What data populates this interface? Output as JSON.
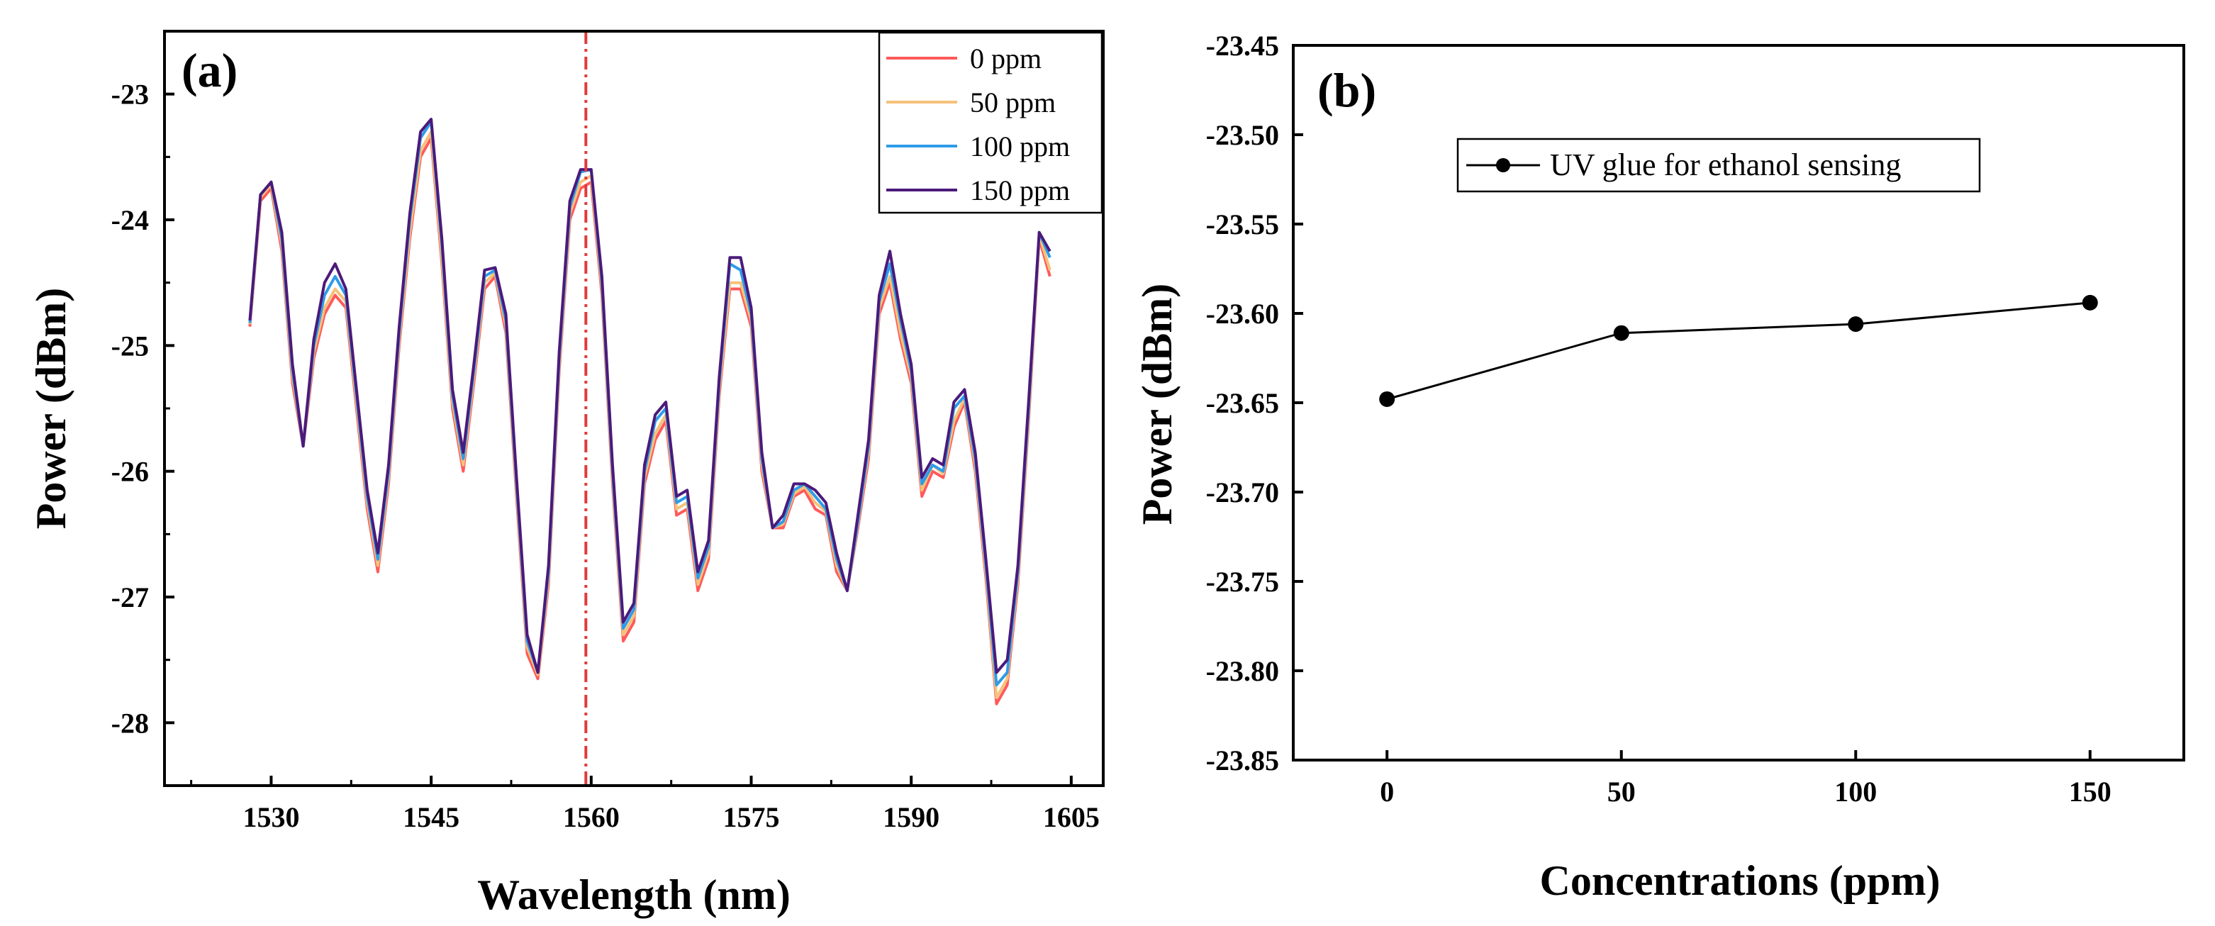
{
  "chart_data": [
    {
      "panel_label": "(a)",
      "type": "line",
      "xlabel": "Wavelength (nm)",
      "ylabel": "Power (dBm)",
      "xlim": [
        1520,
        1608
      ],
      "ylim": [
        -28.5,
        -22.5
      ],
      "xticks": [
        1530,
        1545,
        1560,
        1575,
        1590,
        1605
      ],
      "yticks": [
        -28,
        -27,
        -26,
        -25,
        -24,
        -23
      ],
      "reference_line": {
        "x": 1559.5,
        "style": "dash-dot",
        "color": "#e23a3a"
      },
      "legend_position": "top-right",
      "series": [
        {
          "name": "0 ppm",
          "color": "#ff5a5a",
          "x": [
            1528,
            1529,
            1530,
            1531,
            1532,
            1533,
            1534,
            1535,
            1536,
            1537,
            1538,
            1539,
            1540,
            1541,
            1542,
            1543,
            1544,
            1545,
            1546,
            1547,
            1548,
            1549,
            1550,
            1551,
            1552,
            1553,
            1554,
            1555,
            1556,
            1557,
            1558,
            1559,
            1560,
            1561,
            1562,
            1563,
            1564,
            1565,
            1566,
            1567,
            1568,
            1569,
            1570,
            1571,
            1572,
            1573,
            1574,
            1575,
            1576,
            1577,
            1578,
            1579,
            1580,
            1581,
            1582,
            1583,
            1584,
            1585,
            1586,
            1587,
            1588,
            1589,
            1590,
            1591,
            1592,
            1593,
            1594,
            1595,
            1596,
            1597,
            1598,
            1599,
            1600,
            1601,
            1602,
            1603
          ],
          "y": [
            -24.85,
            -23.85,
            -23.75,
            -24.25,
            -25.3,
            -25.8,
            -25.1,
            -24.75,
            -24.6,
            -24.7,
            -25.5,
            -26.3,
            -26.8,
            -26.1,
            -25.0,
            -24.15,
            -23.5,
            -23.35,
            -24.35,
            -25.5,
            -26.0,
            -25.3,
            -24.55,
            -24.45,
            -24.9,
            -26.2,
            -27.45,
            -27.65,
            -26.9,
            -25.2,
            -24.0,
            -23.75,
            -23.7,
            -24.6,
            -26.1,
            -27.35,
            -27.2,
            -26.1,
            -25.75,
            -25.6,
            -26.35,
            -26.3,
            -26.95,
            -26.7,
            -25.4,
            -24.55,
            -24.55,
            -24.85,
            -26.0,
            -26.45,
            -26.45,
            -26.2,
            -26.15,
            -26.3,
            -26.35,
            -26.8,
            -26.95,
            -26.45,
            -25.9,
            -24.75,
            -24.5,
            -24.95,
            -25.3,
            -26.2,
            -26.0,
            -26.05,
            -25.65,
            -25.45,
            -26.0,
            -26.85,
            -27.85,
            -27.7,
            -26.9,
            -25.6,
            -24.15,
            -24.45
          ]
        },
        {
          "name": "50 ppm",
          "color": "#f5c27a",
          "x": [
            1528,
            1529,
            1530,
            1531,
            1532,
            1533,
            1534,
            1535,
            1536,
            1537,
            1538,
            1539,
            1540,
            1541,
            1542,
            1543,
            1544,
            1545,
            1546,
            1547,
            1548,
            1549,
            1550,
            1551,
            1552,
            1553,
            1554,
            1555,
            1556,
            1557,
            1558,
            1559,
            1560,
            1561,
            1562,
            1563,
            1564,
            1565,
            1566,
            1567,
            1568,
            1569,
            1570,
            1571,
            1572,
            1573,
            1574,
            1575,
            1576,
            1577,
            1578,
            1579,
            1580,
            1581,
            1582,
            1583,
            1584,
            1585,
            1586,
            1587,
            1588,
            1589,
            1590,
            1591,
            1592,
            1593,
            1594,
            1595,
            1596,
            1597,
            1598,
            1599,
            1600,
            1601,
            1602,
            1603
          ],
          "y": [
            -24.83,
            -23.82,
            -23.72,
            -24.2,
            -25.25,
            -25.78,
            -25.05,
            -24.7,
            -24.55,
            -24.65,
            -25.45,
            -26.25,
            -26.75,
            -26.05,
            -24.95,
            -24.1,
            -23.45,
            -23.3,
            -24.3,
            -25.45,
            -25.95,
            -25.25,
            -24.5,
            -24.42,
            -24.85,
            -26.15,
            -27.4,
            -27.62,
            -26.85,
            -25.15,
            -23.95,
            -23.7,
            -23.65,
            -24.55,
            -26.05,
            -27.3,
            -27.15,
            -26.05,
            -25.7,
            -25.55,
            -26.3,
            -26.25,
            -26.9,
            -26.65,
            -25.35,
            -24.5,
            -24.5,
            -24.8,
            -25.95,
            -26.45,
            -26.42,
            -26.18,
            -26.12,
            -26.25,
            -26.32,
            -26.75,
            -26.95,
            -26.42,
            -25.85,
            -24.7,
            -24.45,
            -24.9,
            -25.25,
            -26.15,
            -25.95,
            -26.02,
            -25.6,
            -25.42,
            -25.95,
            -26.8,
            -27.8,
            -27.65,
            -26.85,
            -25.55,
            -24.12,
            -24.4
          ]
        },
        {
          "name": "100 ppm",
          "color": "#2f9be8",
          "x": [
            1528,
            1529,
            1530,
            1531,
            1532,
            1533,
            1534,
            1535,
            1536,
            1537,
            1538,
            1539,
            1540,
            1541,
            1542,
            1543,
            1544,
            1545,
            1546,
            1547,
            1548,
            1549,
            1550,
            1551,
            1552,
            1553,
            1554,
            1555,
            1556,
            1557,
            1558,
            1559,
            1560,
            1561,
            1562,
            1563,
            1564,
            1565,
            1566,
            1567,
            1568,
            1569,
            1570,
            1571,
            1572,
            1573,
            1574,
            1575,
            1576,
            1577,
            1578,
            1579,
            1580,
            1581,
            1582,
            1583,
            1584,
            1585,
            1586,
            1587,
            1588,
            1589,
            1590,
            1591,
            1592,
            1593,
            1594,
            1595,
            1596,
            1597,
            1598,
            1599,
            1600,
            1601,
            1602,
            1603
          ],
          "y": [
            -24.82,
            -23.8,
            -23.7,
            -24.15,
            -25.2,
            -25.8,
            -25.0,
            -24.6,
            -24.45,
            -24.6,
            -25.4,
            -26.2,
            -26.7,
            -26.0,
            -24.9,
            -24.0,
            -23.35,
            -23.22,
            -24.2,
            -25.4,
            -25.9,
            -25.2,
            -24.45,
            -24.4,
            -24.8,
            -26.1,
            -27.35,
            -27.6,
            -26.8,
            -25.1,
            -23.9,
            -23.62,
            -23.6,
            -24.5,
            -26.0,
            -27.25,
            -27.1,
            -26.0,
            -25.6,
            -25.5,
            -26.25,
            -26.2,
            -26.85,
            -26.6,
            -25.3,
            -24.35,
            -24.4,
            -24.75,
            -25.9,
            -26.45,
            -26.4,
            -26.15,
            -26.1,
            -26.2,
            -26.3,
            -26.7,
            -26.95,
            -26.4,
            -25.8,
            -24.65,
            -24.35,
            -24.8,
            -25.2,
            -26.1,
            -25.95,
            -26.0,
            -25.5,
            -25.4,
            -25.9,
            -26.75,
            -27.7,
            -27.6,
            -26.8,
            -25.5,
            -24.1,
            -24.3
          ]
        },
        {
          "name": "150 ppm",
          "color": "#4b1a7a",
          "x": [
            1528,
            1529,
            1530,
            1531,
            1532,
            1533,
            1534,
            1535,
            1536,
            1537,
            1538,
            1539,
            1540,
            1541,
            1542,
            1543,
            1544,
            1545,
            1546,
            1547,
            1548,
            1549,
            1550,
            1551,
            1552,
            1553,
            1554,
            1555,
            1556,
            1557,
            1558,
            1559,
            1560,
            1561,
            1562,
            1563,
            1564,
            1565,
            1566,
            1567,
            1568,
            1569,
            1570,
            1571,
            1572,
            1573,
            1574,
            1575,
            1576,
            1577,
            1578,
            1579,
            1580,
            1581,
            1582,
            1583,
            1584,
            1585,
            1586,
            1587,
            1588,
            1589,
            1590,
            1591,
            1592,
            1593,
            1594,
            1595,
            1596,
            1597,
            1598,
            1599,
            1600,
            1601,
            1602,
            1603
          ],
          "y": [
            -24.8,
            -23.8,
            -23.7,
            -24.1,
            -25.15,
            -25.8,
            -24.95,
            -24.5,
            -24.35,
            -24.55,
            -25.35,
            -26.15,
            -26.65,
            -25.95,
            -24.85,
            -23.95,
            -23.3,
            -23.2,
            -24.15,
            -25.35,
            -25.85,
            -25.15,
            -24.4,
            -24.38,
            -24.75,
            -26.05,
            -27.3,
            -27.6,
            -26.75,
            -25.05,
            -23.85,
            -23.6,
            -23.6,
            -24.45,
            -25.95,
            -27.2,
            -27.05,
            -25.95,
            -25.55,
            -25.45,
            -26.2,
            -26.15,
            -26.8,
            -26.55,
            -25.25,
            -24.3,
            -24.3,
            -24.7,
            -25.85,
            -26.45,
            -26.35,
            -26.1,
            -26.1,
            -26.15,
            -26.25,
            -26.65,
            -26.95,
            -26.35,
            -25.75,
            -24.6,
            -24.25,
            -24.75,
            -25.15,
            -26.05,
            -25.9,
            -25.95,
            -25.45,
            -25.35,
            -25.85,
            -26.7,
            -27.6,
            -27.5,
            -26.75,
            -25.45,
            -24.1,
            -24.25
          ]
        }
      ]
    },
    {
      "panel_label": "(b)",
      "type": "line",
      "xlabel": "Concentrations (ppm)",
      "ylabel": "Power (dBm)",
      "xlim": [
        -20,
        170
      ],
      "ylim": [
        -23.85,
        -23.45
      ],
      "xticks": [
        "0",
        "50",
        "100",
        "150"
      ],
      "yticks": [
        "-23.85",
        "-23.80",
        "-23.75",
        "-23.70",
        "-23.65",
        "-23.60",
        "-23.55",
        "-23.50",
        "-23.45"
      ],
      "legend_position": "top-left",
      "series": [
        {
          "name": "UV glue for ethanol sensing",
          "color": "#000000",
          "marker": "circle",
          "x": [
            0,
            50,
            100,
            150
          ],
          "y": [
            -23.648,
            -23.611,
            -23.606,
            -23.594
          ]
        }
      ]
    }
  ]
}
